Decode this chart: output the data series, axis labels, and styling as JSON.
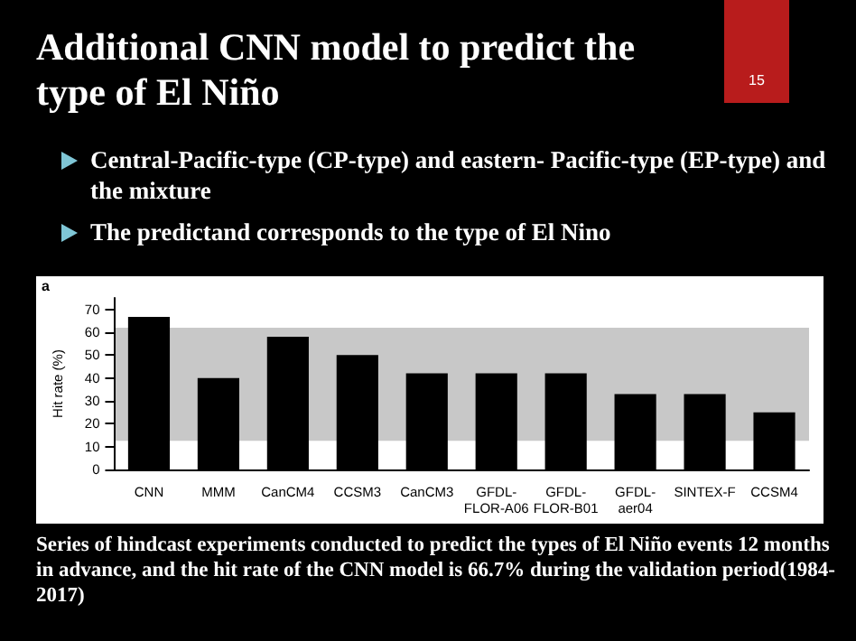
{
  "chart_data": {
    "type": "bar",
    "title": "Additional CNN model to predict the type of El Niño",
    "ylabel": "Hit rate (%)",
    "categories": [
      "CNN",
      "MMM",
      "CanCM4",
      "CCSM3",
      "CanCM3",
      "GFDL-FLOR-A06",
      "GFDL-FLOR-B01",
      "GFDL-aer04",
      "SINTEX-F",
      "CCSM4"
    ],
    "values": [
      66.7,
      40,
      58,
      50,
      42,
      42,
      42,
      33,
      33,
      25
    ],
    "color": "#000000",
    "ylim": [
      0,
      75
    ],
    "yticks": [
      0,
      10,
      20,
      30,
      40,
      50,
      60,
      70
    ],
    "grid": false,
    "bands": [
      {
        "axis": "y",
        "from": 12.5,
        "to": 62,
        "color": "#c8c8c8"
      }
    ],
    "annotations": [
      "15",
      "Central-Pacific-type (CP-type) and eastern- Pacific-type (EP-type) and the mixture",
      "The predictand corresponds to the type of El Nino",
      "a",
      "Series of hindcast experiments conducted to predict the types of El Niño events 12 months in advance, and the hit rate of the CNN model is 66.7% during the validation period(1984-2017)"
    ]
  }
}
